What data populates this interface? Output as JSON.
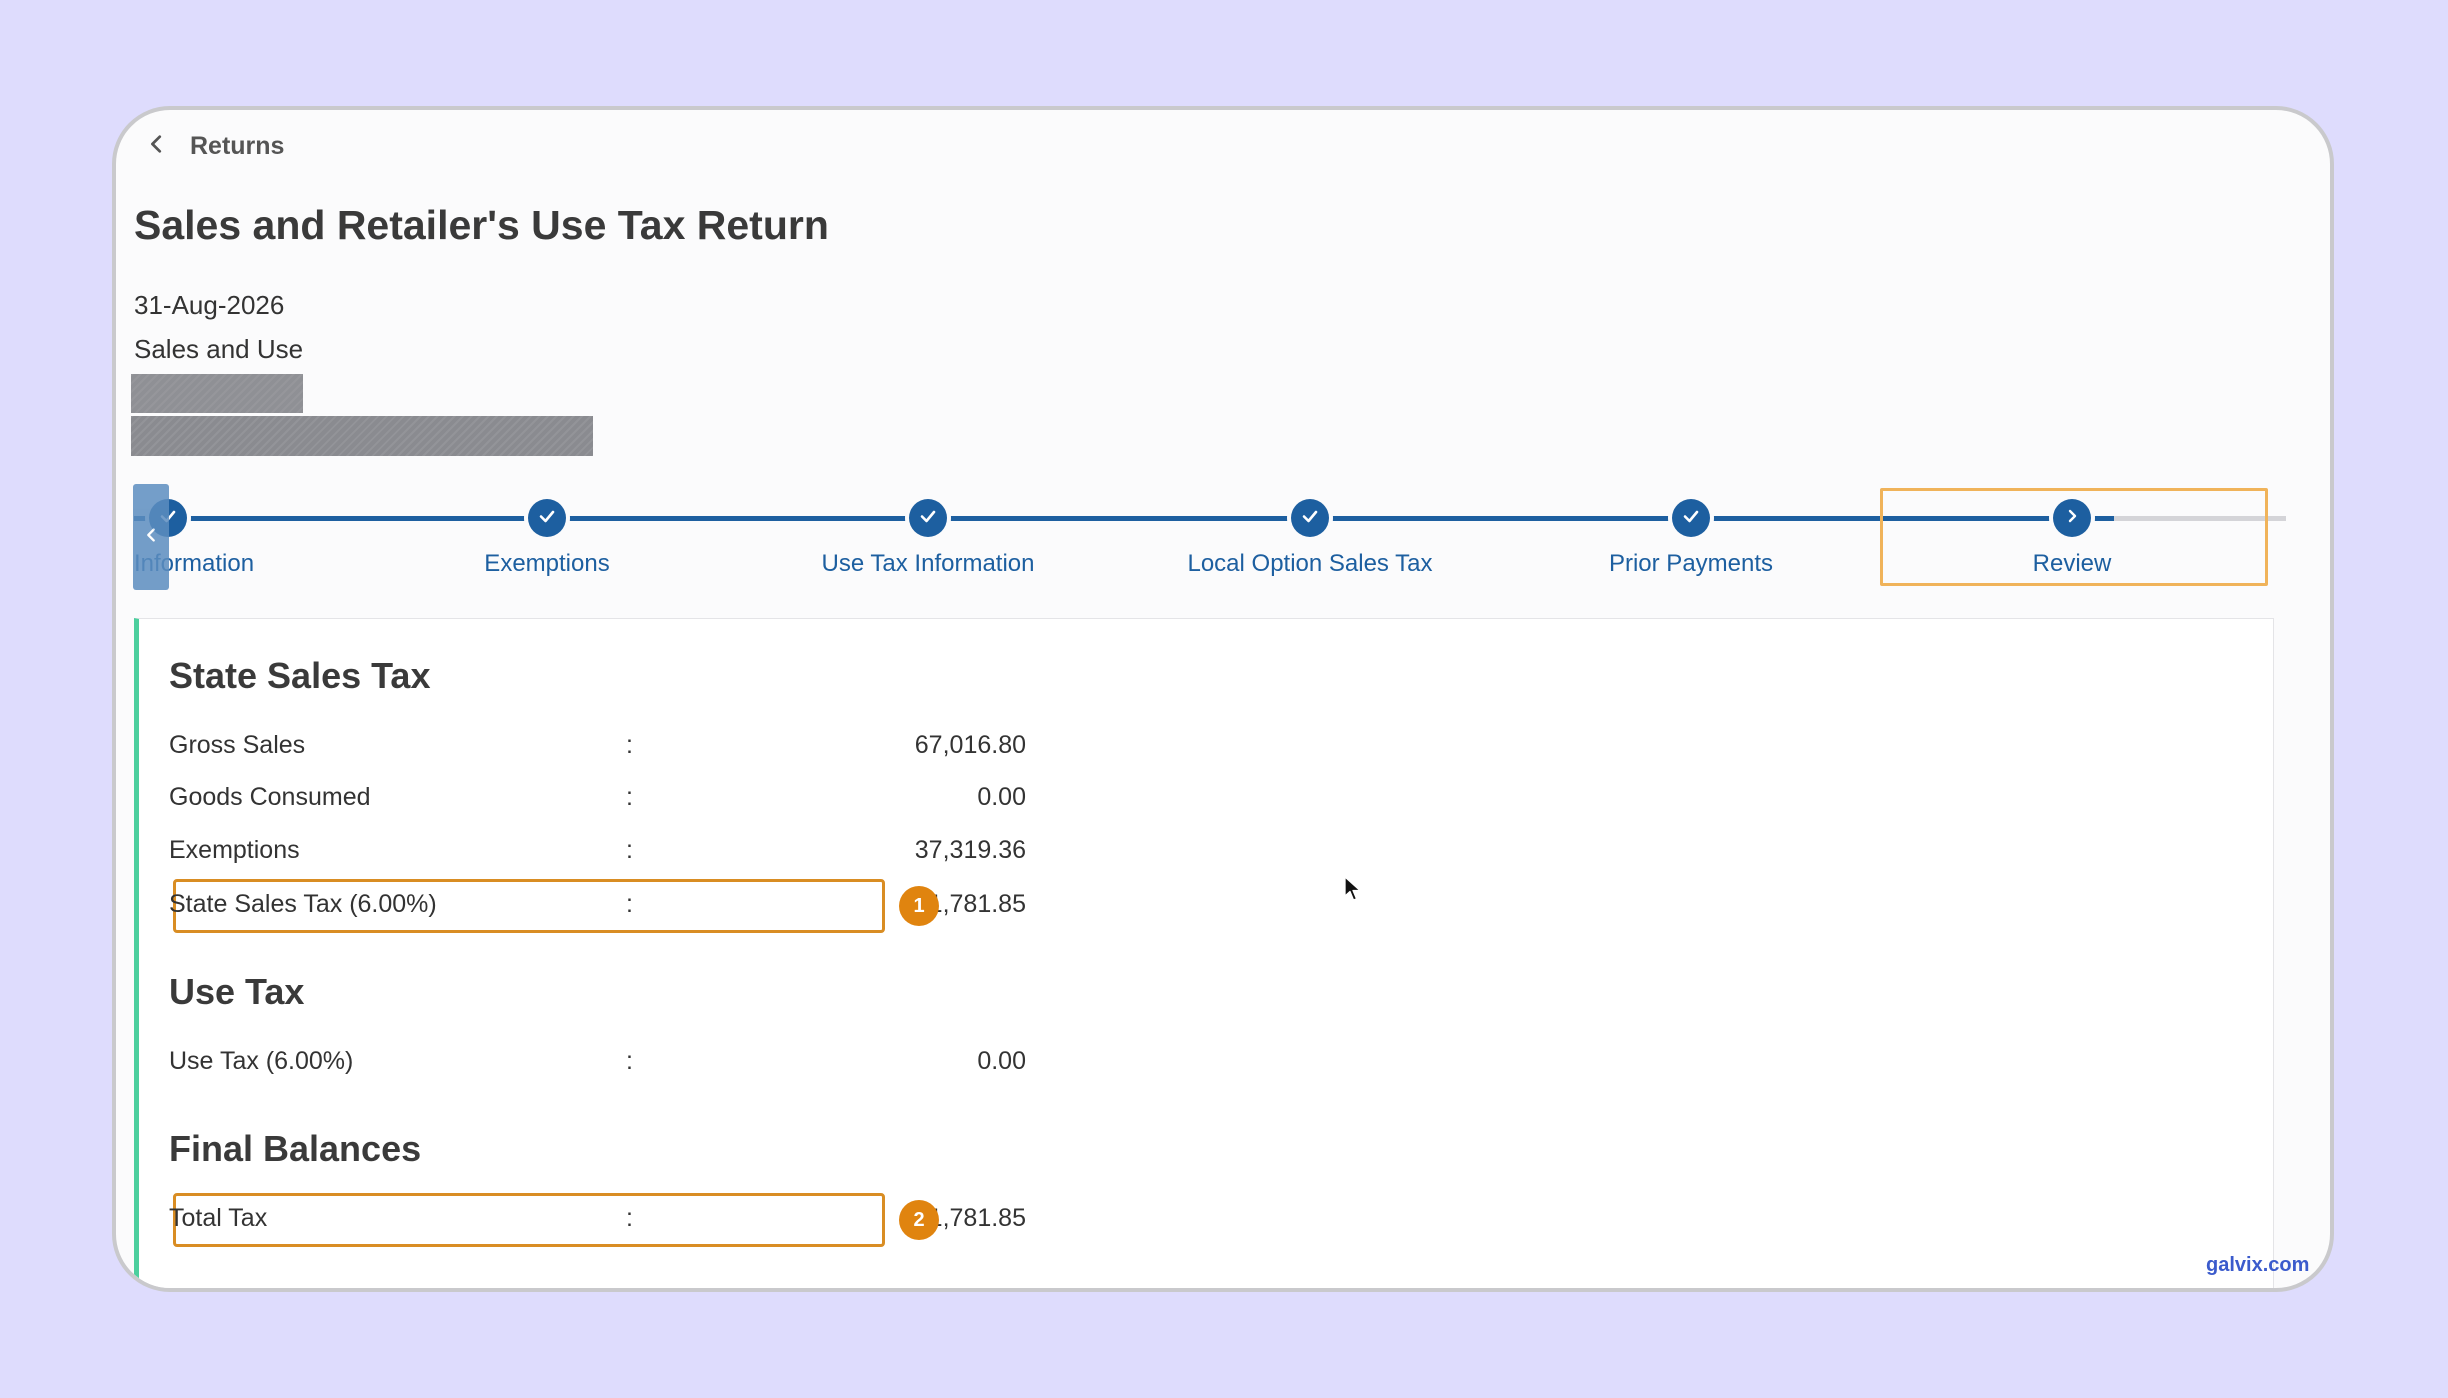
{
  "nav": {
    "back_label": "Returns"
  },
  "page": {
    "title": "Sales and Retailer's Use Tax Return",
    "period_date": "31-Aug-2026",
    "tax_type": "Sales and Use"
  },
  "stepper": {
    "steps": [
      {
        "label": "Information",
        "status": "done"
      },
      {
        "label": "Exemptions",
        "status": "done"
      },
      {
        "label": "Use Tax Information",
        "status": "done"
      },
      {
        "label": "Local Option Sales Tax",
        "status": "done"
      },
      {
        "label": "Prior Payments",
        "status": "done"
      },
      {
        "label": "Review",
        "status": "current"
      }
    ]
  },
  "state_sales_tax": {
    "title": "State Sales Tax",
    "rows": [
      {
        "label": "Gross Sales",
        "value": "67,016.80"
      },
      {
        "label": "Goods Consumed",
        "value": "0.00"
      },
      {
        "label": "Exemptions",
        "value": "37,319.36"
      },
      {
        "label": "State Sales Tax (6.00%)",
        "value": "1,781.85"
      }
    ]
  },
  "use_tax": {
    "title": "Use Tax",
    "rows": [
      {
        "label": "Use Tax (6.00%)",
        "value": "0.00"
      }
    ]
  },
  "final_balances": {
    "title": "Final Balances",
    "rows": [
      {
        "label": "Total Tax",
        "value": "1,781.85"
      }
    ]
  },
  "separator": ":",
  "annotations": {
    "badge1": "1",
    "badge2": "2"
  },
  "watermark": "galvix.com",
  "colors": {
    "background": "#dedcfd",
    "primary": "#1d5fa0",
    "accent_green": "#4ccf9e",
    "highlight_orange": "#d98d23",
    "badge_orange": "#e0840f",
    "review_highlight": "#f0b35a",
    "redaction": "#8f9095"
  },
  "icons": {
    "back": "chevron-left-icon",
    "step_done": "check-icon",
    "step_current": "chevron-right-icon",
    "scroll": "chevron-left-icon",
    "cursor": "mouse-pointer-icon"
  }
}
